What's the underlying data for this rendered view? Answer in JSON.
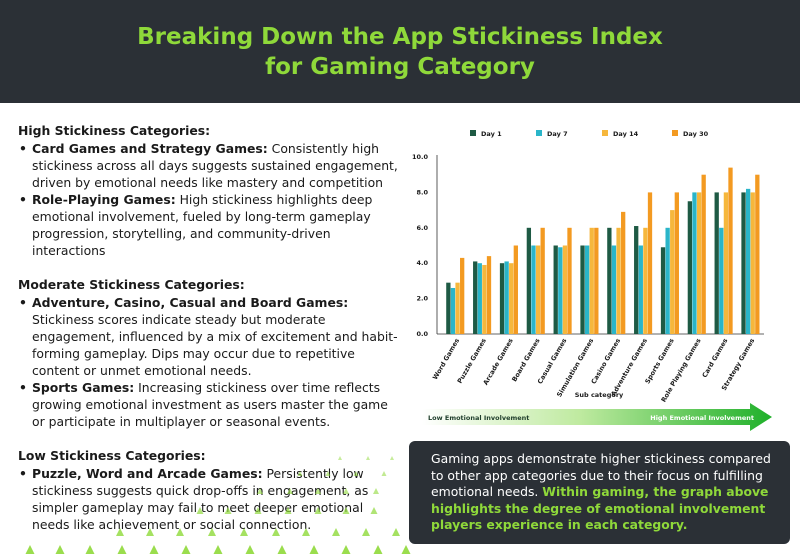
{
  "header": {
    "title_line1": "Breaking Down the App Stickiness Index",
    "title_line2": "for Gaming Category"
  },
  "left": {
    "high": {
      "title": "High Stickiness Categories:",
      "items": [
        {
          "bold": "Card Games and Strategy Games:",
          "text": " Consistently high stickiness across all days suggests sustained engagement, driven by emotional needs like mastery and competition"
        },
        {
          "bold": "Role-Playing Games:",
          "text": " High stickiness highlights deep emotional involvement, fueled by long-term gameplay progression, storytelling, and community-driven interactions"
        }
      ]
    },
    "moderate": {
      "title": "Moderate Stickiness Categories:",
      "items": [
        {
          "bold": "Adventure, Casino, Casual and Board Games:",
          "text": " Stickiness scores indicate steady but moderate engagement, influenced by a mix of excitement and habit-forming gameplay. Dips may occur due to repetitive content or unmet emotional needs."
        },
        {
          "bold": "Sports Games:",
          "text": " Increasing stickiness over time reflects growing emotional investment as users master the game or participate in multiplayer or seasonal events."
        }
      ]
    },
    "low": {
      "title": "Low Stickiness Categories:",
      "items": [
        {
          "bold": "Puzzle, Word and Arcade Games:",
          "text": " Persistently low stickiness suggests quick drop-offs in engagement, as simpler gameplay may fail to meet deeper emotional needs like achievement or social connection."
        }
      ]
    }
  },
  "callout": {
    "text": "Gaming apps demonstrate higher stickiness compared to other app categories due to their focus on fulfilling emotional needs. ",
    "highlight": "Within gaming, the graph above highlights the degree of emotional involvement players experience in each category."
  },
  "arrow": {
    "left_label": "Low Emotional Involvement",
    "right_label": "High Emotional Involvement",
    "left_color": "#1f3d2b",
    "right_color": "#ffffff"
  },
  "colors": {
    "header_bg": "#2b3036",
    "accent": "#8fd93a"
  },
  "chart_data": {
    "type": "bar",
    "title": "",
    "xlabel": "Sub category",
    "ylabel": "",
    "ylim": [
      0,
      10
    ],
    "yticks": [
      "0.0",
      "2.0",
      "4.0",
      "6.0",
      "8.0",
      "10.0"
    ],
    "categories": [
      "Word Games",
      "Puzzle Games",
      "Arcade Games",
      "Board Games",
      "Casual Games",
      "Simulation Games",
      "Casino Games",
      "Adventure Games",
      "Sports Games",
      "Role Playing Games",
      "Card Games",
      "Strategy Games"
    ],
    "series": [
      {
        "name": "Day 1",
        "color": "#1e5a44",
        "values": [
          2.9,
          4.1,
          4.0,
          6.0,
          5.0,
          5.0,
          6.0,
          6.1,
          4.9,
          7.5,
          8.0,
          8.0
        ]
      },
      {
        "name": "Day 7",
        "color": "#2ab5c9",
        "values": [
          2.6,
          4.0,
          4.1,
          5.0,
          4.9,
          5.0,
          5.0,
          5.0,
          6.0,
          8.0,
          6.0,
          8.2
        ]
      },
      {
        "name": "Day 14",
        "color": "#f6b73c",
        "values": [
          2.9,
          3.9,
          4.0,
          5.0,
          5.0,
          6.0,
          6.0,
          6.0,
          7.0,
          8.0,
          8.0,
          8.0
        ]
      },
      {
        "name": "Day 30",
        "color": "#f39a21",
        "values": [
          4.3,
          4.4,
          5.0,
          6.0,
          6.0,
          6.0,
          6.9,
          8.0,
          8.0,
          9.0,
          9.4,
          9.0
        ]
      }
    ],
    "legend_position": "top"
  }
}
